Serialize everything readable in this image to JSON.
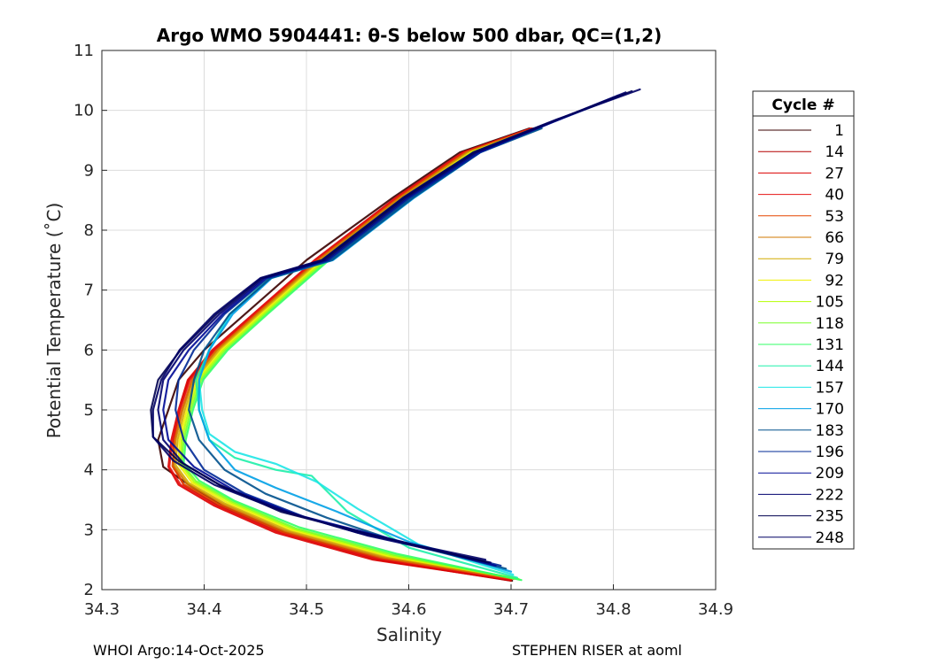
{
  "chart_data": {
    "type": "line",
    "title": "Argo WMO 5904441: θ-S below 500 dbar,  QC=(1,2)",
    "xlabel": "Salinity",
    "ylabel": "Potential Temperature (˚C)",
    "xlim": [
      34.3,
      34.9
    ],
    "ylim": [
      2,
      11
    ],
    "xticks": [
      "34.3",
      "34.4",
      "34.5",
      "34.6",
      "34.7",
      "34.8",
      "34.9"
    ],
    "yticks": [
      "2",
      "3",
      "4",
      "5",
      "6",
      "7",
      "8",
      "9",
      "10",
      "11"
    ],
    "grid": true,
    "legend": {
      "title": "Cycle #",
      "position": "right",
      "entries": [
        "1",
        "14",
        "27",
        "40",
        "53",
        "66",
        "79",
        "92",
        "105",
        "118",
        "131",
        "144",
        "157",
        "170",
        "183",
        "196",
        "209",
        "222",
        "235",
        "248"
      ],
      "colors": [
        "#3a0000",
        "#b40000",
        "#dc0000",
        "#e61414",
        "#e64600",
        "#d27800",
        "#d2aa00",
        "#f0f000",
        "#b4ff00",
        "#78ff28",
        "#32ff64",
        "#1ef0aa",
        "#1ee6e6",
        "#00a0e6",
        "#00508c",
        "#002896",
        "#000a96",
        "#00006e",
        "#000050",
        "#000064"
      ]
    },
    "series": [
      {
        "name": "1",
        "x": [
          34.701,
          34.575,
          34.48,
          34.418,
          34.385,
          34.36,
          34.355,
          34.365,
          34.375,
          34.4,
          34.44,
          34.5,
          34.585,
          34.65,
          34.718
        ],
        "y": [
          2.15,
          2.5,
          2.95,
          3.4,
          3.75,
          4.05,
          4.5,
          5.0,
          5.5,
          6.0,
          6.6,
          7.5,
          8.55,
          9.3,
          9.7
        ]
      },
      {
        "name": "14",
        "x": [
          34.7,
          34.57,
          34.475,
          34.414,
          34.38,
          34.37,
          34.37,
          34.376,
          34.385,
          34.41,
          34.45,
          34.51,
          34.59,
          34.655,
          34.722
        ],
        "y": [
          2.15,
          2.5,
          2.95,
          3.4,
          3.75,
          4.05,
          4.5,
          5.0,
          5.5,
          6.0,
          6.6,
          7.5,
          8.55,
          9.3,
          9.7
        ]
      },
      {
        "name": "27",
        "x": [
          34.699,
          34.565,
          34.47,
          34.41,
          34.375,
          34.365,
          34.368,
          34.375,
          34.384,
          34.408,
          34.448,
          34.508,
          34.588,
          34.653,
          34.72
        ],
        "y": [
          2.16,
          2.5,
          2.95,
          3.4,
          3.75,
          4.05,
          4.5,
          5.0,
          5.5,
          6.0,
          6.6,
          7.5,
          8.55,
          9.3,
          9.7
        ]
      },
      {
        "name": "40",
        "x": [
          34.7,
          34.568,
          34.472,
          34.412,
          34.377,
          34.366,
          34.369,
          34.376,
          34.386,
          34.41,
          34.449,
          34.509,
          34.589,
          34.654,
          34.72
        ],
        "y": [
          2.17,
          2.52,
          2.96,
          3.4,
          3.75,
          4.05,
          4.5,
          5.0,
          5.5,
          6.0,
          6.6,
          7.5,
          8.55,
          9.3,
          9.7
        ]
      },
      {
        "name": "53",
        "x": [
          34.702,
          34.572,
          34.476,
          34.415,
          34.38,
          34.369,
          34.371,
          34.378,
          34.388,
          34.412,
          34.451,
          34.511,
          34.591,
          34.656,
          34.722
        ],
        "y": [
          2.18,
          2.53,
          2.97,
          3.42,
          3.76,
          4.06,
          4.5,
          5.0,
          5.5,
          6.0,
          6.6,
          7.5,
          8.55,
          9.3,
          9.7
        ]
      },
      {
        "name": "66",
        "x": [
          34.703,
          34.575,
          34.479,
          34.418,
          34.383,
          34.37,
          34.372,
          34.379,
          34.389,
          34.413,
          34.452,
          34.512,
          34.592,
          34.657,
          34.723
        ],
        "y": [
          2.18,
          2.54,
          2.98,
          3.43,
          3.77,
          4.07,
          4.5,
          5.0,
          5.5,
          6.0,
          6.6,
          7.5,
          8.55,
          9.3,
          9.7
        ]
      },
      {
        "name": "79",
        "x": [
          34.704,
          34.578,
          34.482,
          34.42,
          34.385,
          34.372,
          34.374,
          34.381,
          34.391,
          34.415,
          34.454,
          34.514,
          34.594,
          34.659,
          34.724
        ],
        "y": [
          2.19,
          2.55,
          2.99,
          3.44,
          3.78,
          4.08,
          4.5,
          5.0,
          5.5,
          6.0,
          6.6,
          7.5,
          8.55,
          9.3,
          9.7
        ]
      },
      {
        "name": "92",
        "x": [
          34.705,
          34.58,
          34.485,
          34.423,
          34.388,
          34.375,
          34.376,
          34.383,
          34.393,
          34.417,
          34.456,
          34.516,
          34.596,
          34.661,
          34.725
        ],
        "y": [
          2.19,
          2.56,
          3.0,
          3.45,
          3.79,
          4.09,
          4.5,
          5.0,
          5.5,
          6.0,
          6.6,
          7.5,
          8.55,
          9.3,
          9.7
        ]
      },
      {
        "name": "105",
        "x": [
          34.707,
          34.583,
          34.488,
          34.426,
          34.39,
          34.377,
          34.378,
          34.385,
          34.395,
          34.419,
          34.458,
          34.518,
          34.598,
          34.662,
          34.726
        ],
        "y": [
          2.18,
          2.57,
          3.01,
          3.46,
          3.8,
          4.1,
          4.5,
          5.0,
          5.5,
          6.0,
          6.6,
          7.5,
          8.55,
          9.3,
          9.7
        ]
      },
      {
        "name": "118",
        "x": [
          34.708,
          34.586,
          34.49,
          34.428,
          34.392,
          34.378,
          34.38,
          34.387,
          34.397,
          34.421,
          34.46,
          34.52,
          34.6,
          34.664,
          34.727
        ],
        "y": [
          2.17,
          2.58,
          3.02,
          3.47,
          3.81,
          4.11,
          4.5,
          5.0,
          5.5,
          6.0,
          6.6,
          7.5,
          8.55,
          9.3,
          9.7
        ]
      },
      {
        "name": "131",
        "x": [
          34.71,
          34.588,
          34.493,
          34.43,
          34.395,
          34.38,
          34.382,
          34.389,
          34.399,
          34.423,
          34.462,
          34.522,
          34.602,
          34.666,
          34.728
        ],
        "y": [
          2.16,
          2.6,
          3.04,
          3.48,
          3.82,
          4.12,
          4.5,
          5.0,
          5.5,
          6.0,
          6.6,
          7.5,
          8.55,
          9.3,
          9.7
        ]
      },
      {
        "name": "144",
        "x": [
          34.706,
          34.6,
          34.54,
          34.505,
          34.47,
          34.43,
          34.405,
          34.395,
          34.392,
          34.405,
          34.425,
          34.464,
          34.524,
          34.604,
          34.668,
          34.727
        ],
        "y": [
          2.2,
          2.7,
          3.3,
          3.9,
          4.0,
          4.2,
          4.5,
          5.0,
          5.5,
          6.0,
          6.6,
          7.2,
          7.5,
          8.55,
          9.3,
          9.7
        ]
      },
      {
        "name": "157",
        "x": [
          34.702,
          34.61,
          34.55,
          34.51,
          34.47,
          34.43,
          34.405,
          34.398,
          34.395,
          34.405,
          34.426,
          34.465,
          34.525,
          34.605,
          34.669,
          34.727
        ],
        "y": [
          2.25,
          2.75,
          3.35,
          3.8,
          4.1,
          4.3,
          4.6,
          5.0,
          5.5,
          6.0,
          6.6,
          7.2,
          7.5,
          8.55,
          9.3,
          9.7
        ]
      },
      {
        "name": "170",
        "x": [
          34.7,
          34.6,
          34.53,
          34.47,
          34.43,
          34.405,
          34.395,
          34.395,
          34.405,
          34.428,
          34.466,
          34.526,
          34.606,
          34.67,
          34.728
        ],
        "y": [
          2.3,
          2.8,
          3.3,
          3.7,
          4.0,
          4.5,
          5.0,
          5.5,
          6.0,
          6.6,
          7.2,
          7.5,
          8.55,
          9.3,
          9.7
        ]
      },
      {
        "name": "183",
        "x": [
          34.695,
          34.59,
          34.52,
          34.46,
          34.42,
          34.395,
          34.385,
          34.39,
          34.4,
          34.425,
          34.465,
          34.525,
          34.605,
          34.67,
          34.73
        ],
        "y": [
          2.35,
          2.8,
          3.2,
          3.6,
          4.0,
          4.5,
          5.0,
          5.5,
          6.0,
          6.6,
          7.2,
          7.5,
          8.55,
          9.3,
          9.7
        ]
      },
      {
        "name": "196",
        "x": [
          34.69,
          34.58,
          34.5,
          34.44,
          34.4,
          34.38,
          34.372,
          34.375,
          34.39,
          34.42,
          34.462,
          34.522,
          34.602,
          34.67,
          34.74,
          34.8
        ],
        "y": [
          2.4,
          2.85,
          3.2,
          3.6,
          4.0,
          4.5,
          5.0,
          5.5,
          6.0,
          6.6,
          7.2,
          7.5,
          8.55,
          9.3,
          9.8,
          10.2
        ]
      },
      {
        "name": "209",
        "x": [
          34.685,
          34.57,
          34.49,
          34.43,
          34.39,
          34.365,
          34.36,
          34.365,
          34.385,
          34.418,
          34.46,
          34.52,
          34.6,
          34.668,
          34.74,
          34.805
        ],
        "y": [
          2.4,
          2.9,
          3.25,
          3.65,
          4.05,
          4.5,
          5.0,
          5.5,
          6.0,
          6.6,
          7.2,
          7.5,
          8.55,
          9.3,
          9.8,
          10.25
        ]
      },
      {
        "name": "222",
        "x": [
          34.68,
          34.56,
          34.48,
          34.42,
          34.38,
          34.36,
          34.355,
          34.36,
          34.38,
          34.415,
          34.458,
          34.518,
          34.598,
          34.666,
          34.742,
          34.812
        ],
        "y": [
          2.45,
          2.9,
          3.3,
          3.7,
          4.1,
          4.5,
          5.0,
          5.5,
          6.0,
          6.6,
          7.2,
          7.5,
          8.55,
          9.3,
          9.82,
          10.3
        ]
      },
      {
        "name": "235",
        "x": [
          34.678,
          34.555,
          34.475,
          34.415,
          34.375,
          34.35,
          34.348,
          34.355,
          34.377,
          34.412,
          34.456,
          34.516,
          34.596,
          34.664,
          34.744,
          34.818
        ],
        "y": [
          2.45,
          2.95,
          3.3,
          3.75,
          4.15,
          4.55,
          5.0,
          5.5,
          6.0,
          6.6,
          7.2,
          7.5,
          8.55,
          9.3,
          9.84,
          10.32
        ]
      },
      {
        "name": "248",
        "x": [
          34.675,
          34.55,
          34.47,
          34.41,
          34.37,
          34.35,
          34.35,
          34.358,
          34.376,
          34.41,
          34.455,
          34.515,
          34.595,
          34.663,
          34.745,
          34.826
        ],
        "y": [
          2.5,
          2.95,
          3.35,
          3.75,
          4.15,
          4.55,
          5.0,
          5.5,
          6.0,
          6.6,
          7.2,
          7.5,
          8.55,
          9.3,
          9.85,
          10.35
        ]
      }
    ]
  },
  "footer": {
    "left": "WHOI Argo:14-Oct-2025",
    "right": "STEPHEN RISER at aoml"
  }
}
